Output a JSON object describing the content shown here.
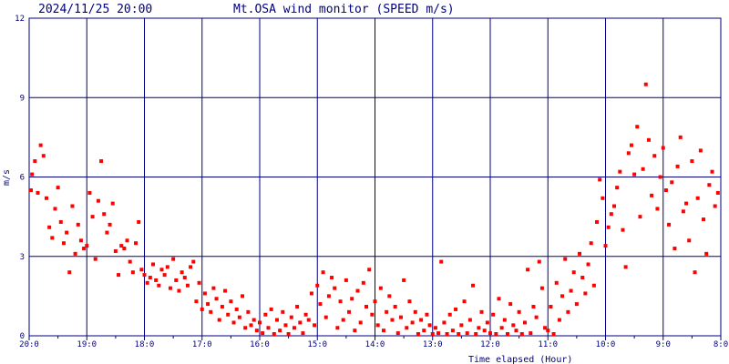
{
  "header": {
    "datetime": "2024/11/25 20:00",
    "title": "Mt.OSA wind monitor (SPEED m/s)"
  },
  "chart_data": {
    "type": "scatter",
    "title": "Mt.OSA wind monitor (SPEED m/s)",
    "xlabel": "Time elapsed (Hour)",
    "ylabel": "m/s",
    "x_unit": "hours elapsed before 20:00",
    "xlim": [
      0,
      12
    ],
    "ylim": [
      0,
      12
    ],
    "x_ticks": [
      0,
      1,
      2,
      3,
      4,
      5,
      6,
      7,
      8,
      9,
      10,
      11,
      12
    ],
    "x_tick_labels": [
      "20:0",
      "19:0",
      "18:0",
      "17:0",
      "16:0",
      "15:0",
      "14:0",
      "13:0",
      "12:0",
      "11:0",
      "10:0",
      "9:0",
      "8:0"
    ],
    "y_ticks": [
      0,
      3,
      6,
      9,
      12
    ],
    "y_tick_labels": [
      "0",
      "3",
      "6",
      "9",
      "12"
    ],
    "grid": true,
    "colors": {
      "points": "#ff0000",
      "grid": "#000080",
      "text": "#000080"
    },
    "series": [
      {
        "values": [
          [
            0.0,
            5.5
          ],
          [
            0.05,
            6.1
          ],
          [
            0.1,
            6.6
          ],
          [
            0.15,
            5.4
          ],
          [
            0.2,
            7.2
          ],
          [
            0.25,
            6.8
          ],
          [
            0.3,
            5.2
          ],
          [
            0.35,
            4.1
          ],
          [
            0.4,
            3.7
          ],
          [
            0.45,
            4.8
          ],
          [
            0.5,
            5.6
          ],
          [
            0.55,
            4.3
          ],
          [
            0.6,
            3.5
          ],
          [
            0.65,
            3.9
          ],
          [
            0.7,
            2.4
          ],
          [
            0.75,
            4.9
          ],
          [
            0.8,
            3.1
          ],
          [
            0.85,
            4.2
          ],
          [
            0.9,
            3.6
          ],
          [
            0.95,
            3.3
          ],
          [
            1.0,
            3.4
          ],
          [
            1.05,
            5.4
          ],
          [
            1.1,
            4.5
          ],
          [
            1.15,
            2.9
          ],
          [
            1.2,
            5.1
          ],
          [
            1.25,
            6.6
          ],
          [
            1.3,
            4.6
          ],
          [
            1.35,
            3.9
          ],
          [
            1.4,
            4.2
          ],
          [
            1.45,
            5.0
          ],
          [
            1.5,
            3.2
          ],
          [
            1.55,
            2.3
          ],
          [
            1.6,
            3.4
          ],
          [
            1.65,
            3.3
          ],
          [
            1.7,
            3.6
          ],
          [
            1.75,
            2.8
          ],
          [
            1.8,
            2.4
          ],
          [
            1.85,
            3.5
          ],
          [
            1.9,
            4.3
          ],
          [
            1.95,
            2.5
          ],
          [
            2.0,
            2.3
          ],
          [
            2.05,
            2.0
          ],
          [
            2.1,
            2.2
          ],
          [
            2.15,
            2.7
          ],
          [
            2.2,
            2.1
          ],
          [
            2.25,
            1.9
          ],
          [
            2.3,
            2.5
          ],
          [
            2.35,
            2.3
          ],
          [
            2.4,
            2.6
          ],
          [
            2.45,
            1.8
          ],
          [
            2.5,
            2.9
          ],
          [
            2.55,
            2.1
          ],
          [
            2.6,
            1.7
          ],
          [
            2.65,
            2.4
          ],
          [
            2.7,
            2.2
          ],
          [
            2.75,
            1.9
          ],
          [
            2.8,
            2.6
          ],
          [
            2.85,
            2.8
          ],
          [
            2.9,
            1.3
          ],
          [
            2.95,
            2.0
          ],
          [
            3.0,
            1.0
          ],
          [
            3.05,
            1.6
          ],
          [
            3.1,
            1.2
          ],
          [
            3.15,
            0.9
          ],
          [
            3.2,
            1.8
          ],
          [
            3.25,
            1.4
          ],
          [
            3.3,
            0.6
          ],
          [
            3.35,
            1.1
          ],
          [
            3.4,
            1.7
          ],
          [
            3.45,
            0.8
          ],
          [
            3.5,
            1.3
          ],
          [
            3.55,
            0.5
          ],
          [
            3.6,
            1.0
          ],
          [
            3.65,
            0.7
          ],
          [
            3.7,
            1.5
          ],
          [
            3.75,
            0.3
          ],
          [
            3.8,
            0.9
          ],
          [
            3.85,
            0.4
          ],
          [
            3.9,
            0.6
          ],
          [
            3.95,
            0.2
          ],
          [
            4.0,
            0.5
          ],
          [
            4.05,
            0.1
          ],
          [
            4.1,
            0.8
          ],
          [
            4.15,
            0.3
          ],
          [
            4.2,
            1.0
          ],
          [
            4.25,
            0.0
          ],
          [
            4.3,
            0.6
          ],
          [
            4.35,
            0.2
          ],
          [
            4.4,
            0.9
          ],
          [
            4.45,
            0.4
          ],
          [
            4.5,
            0.0
          ],
          [
            4.55,
            0.7
          ],
          [
            4.6,
            0.3
          ],
          [
            4.65,
            1.1
          ],
          [
            4.7,
            0.5
          ],
          [
            4.75,
            0.1
          ],
          [
            4.8,
            0.8
          ],
          [
            4.85,
            0.6
          ],
          [
            4.9,
            1.6
          ],
          [
            4.95,
            0.4
          ],
          [
            5.0,
            1.9
          ],
          [
            5.05,
            1.2
          ],
          [
            5.1,
            2.4
          ],
          [
            5.15,
            0.7
          ],
          [
            5.2,
            1.5
          ],
          [
            5.25,
            2.2
          ],
          [
            5.3,
            1.8
          ],
          [
            5.35,
            0.3
          ],
          [
            5.4,
            1.3
          ],
          [
            5.45,
            0.6
          ],
          [
            5.5,
            2.1
          ],
          [
            5.55,
            0.9
          ],
          [
            5.6,
            1.4
          ],
          [
            5.65,
            0.2
          ],
          [
            5.7,
            1.7
          ],
          [
            5.75,
            0.5
          ],
          [
            5.8,
            2.0
          ],
          [
            5.85,
            1.1
          ],
          [
            5.9,
            2.5
          ],
          [
            5.95,
            0.8
          ],
          [
            6.0,
            1.3
          ],
          [
            6.05,
            0.4
          ],
          [
            6.1,
            1.8
          ],
          [
            6.15,
            0.2
          ],
          [
            6.2,
            0.9
          ],
          [
            6.25,
            1.5
          ],
          [
            6.3,
            0.6
          ],
          [
            6.35,
            1.1
          ],
          [
            6.4,
            0.1
          ],
          [
            6.45,
            0.7
          ],
          [
            6.5,
            2.1
          ],
          [
            6.55,
            0.3
          ],
          [
            6.6,
            1.3
          ],
          [
            6.65,
            0.5
          ],
          [
            6.7,
            0.9
          ],
          [
            6.75,
            0.0
          ],
          [
            6.8,
            0.6
          ],
          [
            6.85,
            0.2
          ],
          [
            6.9,
            0.8
          ],
          [
            6.95,
            0.4
          ],
          [
            7.0,
            0.0
          ],
          [
            7.05,
            0.3
          ],
          [
            7.1,
            0.1
          ],
          [
            7.15,
            2.8
          ],
          [
            7.2,
            0.5
          ],
          [
            7.25,
            0.0
          ],
          [
            7.3,
            0.8
          ],
          [
            7.35,
            0.2
          ],
          [
            7.4,
            1.0
          ],
          [
            7.45,
            0.0
          ],
          [
            7.5,
            0.4
          ],
          [
            7.55,
            1.3
          ],
          [
            7.6,
            0.1
          ],
          [
            7.65,
            0.6
          ],
          [
            7.7,
            1.9
          ],
          [
            7.75,
            0.0
          ],
          [
            7.8,
            0.3
          ],
          [
            7.85,
            0.9
          ],
          [
            7.9,
            0.2
          ],
          [
            7.95,
            0.5
          ],
          [
            8.0,
            0.1
          ],
          [
            8.05,
            0.8
          ],
          [
            8.1,
            0.0
          ],
          [
            8.15,
            1.4
          ],
          [
            8.2,
            0.3
          ],
          [
            8.25,
            0.6
          ],
          [
            8.3,
            0.0
          ],
          [
            8.35,
            1.2
          ],
          [
            8.4,
            0.4
          ],
          [
            8.45,
            0.2
          ],
          [
            8.5,
            0.9
          ],
          [
            8.55,
            0.0
          ],
          [
            8.6,
            0.5
          ],
          [
            8.65,
            2.5
          ],
          [
            8.7,
            0.1
          ],
          [
            8.75,
            1.1
          ],
          [
            8.8,
            0.7
          ],
          [
            8.85,
            2.8
          ],
          [
            8.9,
            1.8
          ],
          [
            8.95,
            0.3
          ],
          [
            9.0,
            0.2
          ],
          [
            9.05,
            1.1
          ],
          [
            9.1,
            0.0
          ],
          [
            9.15,
            2.0
          ],
          [
            9.2,
            0.6
          ],
          [
            9.25,
            1.5
          ],
          [
            9.3,
            2.9
          ],
          [
            9.35,
            0.9
          ],
          [
            9.4,
            1.7
          ],
          [
            9.45,
            2.4
          ],
          [
            9.5,
            1.2
          ],
          [
            9.55,
            3.1
          ],
          [
            9.6,
            2.2
          ],
          [
            9.65,
            1.6
          ],
          [
            9.7,
            2.7
          ],
          [
            9.75,
            3.5
          ],
          [
            9.8,
            1.9
          ],
          [
            9.85,
            4.3
          ],
          [
            9.9,
            5.9
          ],
          [
            9.95,
            5.2
          ],
          [
            10.0,
            3.4
          ],
          [
            10.05,
            4.1
          ],
          [
            10.1,
            4.6
          ],
          [
            10.15,
            4.9
          ],
          [
            10.2,
            5.6
          ],
          [
            10.25,
            6.2
          ],
          [
            10.3,
            4.0
          ],
          [
            10.35,
            2.6
          ],
          [
            10.4,
            6.9
          ],
          [
            10.45,
            7.2
          ],
          [
            10.5,
            6.1
          ],
          [
            10.55,
            7.9
          ],
          [
            10.6,
            4.5
          ],
          [
            10.65,
            6.3
          ],
          [
            10.7,
            9.5
          ],
          [
            10.75,
            7.4
          ],
          [
            10.8,
            5.3
          ],
          [
            10.85,
            6.8
          ],
          [
            10.9,
            4.8
          ],
          [
            10.95,
            6.0
          ],
          [
            11.0,
            7.1
          ],
          [
            11.05,
            5.5
          ],
          [
            11.1,
            4.2
          ],
          [
            11.15,
            5.8
          ],
          [
            11.2,
            3.3
          ],
          [
            11.25,
            6.4
          ],
          [
            11.3,
            7.5
          ],
          [
            11.35,
            4.7
          ],
          [
            11.4,
            5.0
          ],
          [
            11.45,
            3.6
          ],
          [
            11.5,
            6.6
          ],
          [
            11.55,
            2.4
          ],
          [
            11.6,
            5.2
          ],
          [
            11.65,
            7.0
          ],
          [
            11.7,
            4.4
          ],
          [
            11.75,
            3.1
          ],
          [
            11.8,
            5.7
          ],
          [
            11.85,
            6.2
          ],
          [
            11.9,
            4.9
          ],
          [
            11.95,
            5.4
          ]
        ]
      }
    ]
  }
}
